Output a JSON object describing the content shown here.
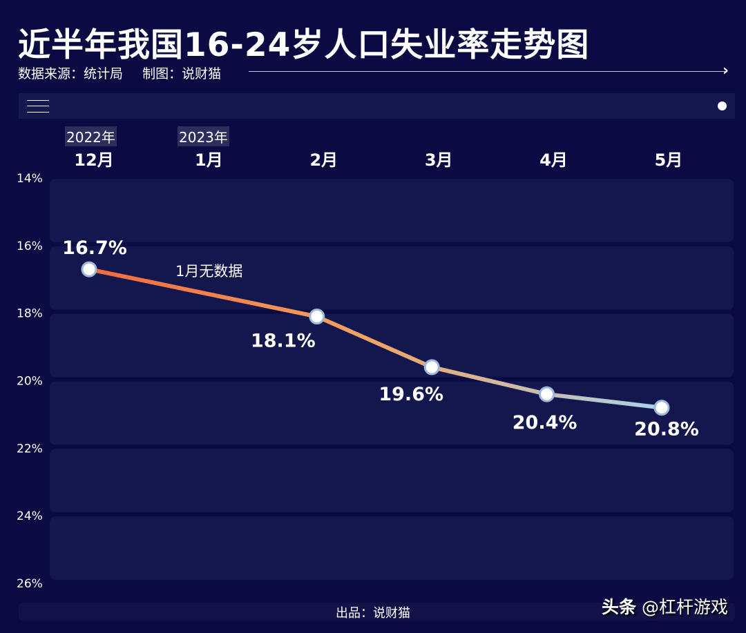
{
  "title": "近半年我国16-24岁人口失业率走势图",
  "source_label": "数据来源：统计局",
  "author_label": "制图：说财猫",
  "footer": "出品：说财猫",
  "watermark": {
    "brand": "头条",
    "handle": "@杠杆游戏"
  },
  "year_labels": [
    {
      "text": "2022年",
      "month_index": 0
    },
    {
      "text": "2023年",
      "month_index": 1
    }
  ],
  "annotation": "1月无数据",
  "colors": {
    "background": "#0a0b42",
    "band": "#14164e",
    "line_start": "#f06a3c",
    "line_mid": "#f0a565",
    "line_end": "#a8d2ea"
  },
  "chart_data": {
    "type": "line",
    "title": "近半年我国16-24岁人口失业率走势图",
    "categories": [
      "12月",
      "1月",
      "2月",
      "3月",
      "4月",
      "5月"
    ],
    "series": [
      {
        "name": "16-24岁人口失业率",
        "values": [
          16.7,
          null,
          18.1,
          19.6,
          20.4,
          20.8
        ],
        "labels": [
          "16.7%",
          null,
          "18.1%",
          "19.6%",
          "20.4%",
          "20.8%"
        ]
      }
    ],
    "y_ticks": [
      "14%",
      "16%",
      "18%",
      "20%",
      "22%",
      "24%",
      "26%"
    ],
    "ylim": [
      14,
      26
    ],
    "y_inverted": true,
    "xlabel": "",
    "ylabel": ""
  }
}
